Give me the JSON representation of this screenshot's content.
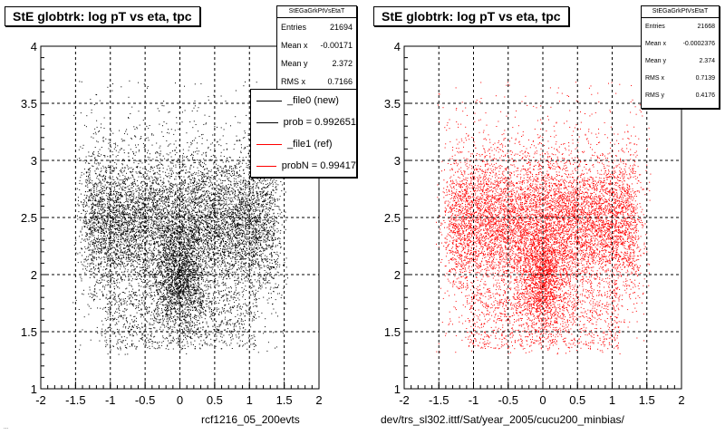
{
  "colors": {
    "new": "#000000",
    "ref": "#ff0000",
    "grid": "#000000"
  },
  "chart_data": [
    {
      "type": "scatter",
      "title": "StE globtrk: log pT vs eta, tpc",
      "xlabel": "rcf1216_05_200evts",
      "ylabel": "",
      "xlim": [
        -2,
        2
      ],
      "ylim": [
        1,
        4
      ],
      "xticks": [
        "-2",
        "-1.5",
        "-1",
        "-0.5",
        "0",
        "0.5",
        "1",
        "1.5",
        "2"
      ],
      "yticks": [
        "1",
        "1.5",
        "2",
        "2.5",
        "3",
        "3.5",
        "4"
      ],
      "grid": true,
      "series_color": "#000000",
      "stats": {
        "header": "StEGaGrkPtVsEtaT",
        "rows": [
          {
            "label": "Entries",
            "value": "21694"
          },
          {
            "label": "Mean x",
            "value": "-0.00171"
          },
          {
            "label": "Mean y",
            "value": "2.372"
          },
          {
            "label": "RMS x",
            "value": "0.7166"
          }
        ]
      },
      "legend": {
        "placement": "top-right",
        "entries": [
          {
            "label": "_file0 (new)",
            "color": "#000000"
          },
          {
            "label": "prob = 0.992651",
            "color": "#000000"
          },
          {
            "label": "_file1 (ref)",
            "color": "#ff0000"
          },
          {
            "label": "probN = 0.99417",
            "color": "#ff0000"
          }
        ]
      }
    },
    {
      "type": "scatter",
      "title": "StE globtrk: log pT vs eta, tpc",
      "xlabel": "dev/trs_sl302.ittf/Sat/year_2005/cucu200_minbias/",
      "ylabel": "",
      "xlim": [
        -2,
        2
      ],
      "ylim": [
        1,
        4
      ],
      "xticks": [
        "-2",
        "-1.5",
        "-1",
        "-0.5",
        "0",
        "0.5",
        "1",
        "1.5",
        "2"
      ],
      "yticks": [
        "1",
        "1.5",
        "2",
        "2.5",
        "3",
        "3.5",
        "4"
      ],
      "grid": true,
      "series_color": "#ff0000",
      "stats": {
        "header": "StEGaGrkPtVsEtaT",
        "rows": [
          {
            "label": "Entries",
            "value": "21668"
          },
          {
            "label": "Mean x",
            "value": "-0.0002376"
          },
          {
            "label": "Mean y",
            "value": "2.374"
          },
          {
            "label": "RMS x",
            "value": "0.7139"
          },
          {
            "label": "RMS y",
            "value": "0.4176"
          }
        ]
      }
    }
  ],
  "footer_note": "..."
}
